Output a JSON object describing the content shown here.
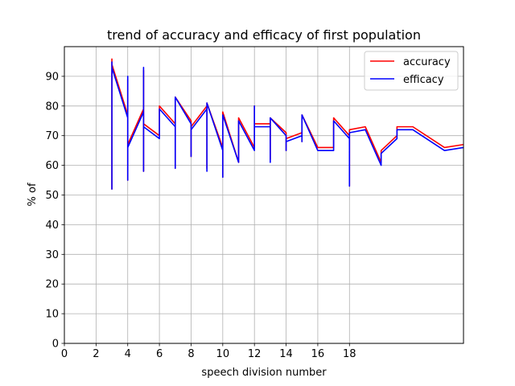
{
  "chart_data": {
    "type": "line",
    "title": "trend of accuracy and efficacy of first population",
    "xlabel": "speech division number",
    "ylabel": "% of",
    "xlim": [
      0,
      25.2
    ],
    "ylim": [
      0,
      100
    ],
    "xticks": [
      0,
      2,
      4,
      6,
      8,
      10,
      12,
      14,
      16,
      18
    ],
    "yticks": [
      0,
      10,
      20,
      30,
      40,
      50,
      60,
      70,
      80,
      90
    ],
    "grid": true,
    "legend_position": "top-right",
    "series": [
      {
        "name": "accuracy",
        "color": "#ff0000",
        "x": [
          3,
          3,
          3,
          4,
          4,
          4,
          4,
          5,
          5,
          5,
          5,
          6,
          6,
          7,
          7,
          7,
          8,
          8,
          8,
          9,
          9,
          9,
          10,
          10,
          10,
          11,
          11,
          12,
          12,
          12,
          13,
          13,
          13,
          14,
          14,
          14,
          15,
          15,
          15,
          16,
          17,
          17,
          18,
          18,
          18,
          19,
          20,
          20,
          21,
          21,
          22,
          24,
          25.2
        ],
        "y": [
          96,
          52,
          94,
          77,
          55,
          89,
          67,
          79,
          58,
          92,
          74,
          70,
          80,
          74,
          59,
          83,
          75,
          63,
          73,
          80,
          59,
          81,
          66,
          56,
          78,
          61,
          76,
          66,
          80,
          74,
          74,
          62,
          76,
          71,
          65,
          69,
          71,
          68,
          77,
          66,
          66,
          76,
          70,
          53,
          72,
          73,
          61,
          65,
          70,
          73,
          73,
          66,
          67
        ]
      },
      {
        "name": "efficacy",
        "color": "#0000ff",
        "x": [
          3,
          3,
          3,
          4,
          4,
          4,
          4,
          5,
          5,
          5,
          5,
          6,
          6,
          7,
          7,
          7,
          8,
          8,
          8,
          9,
          9,
          9,
          10,
          10,
          10,
          11,
          11,
          12,
          12,
          12,
          13,
          13,
          13,
          14,
          14,
          14,
          15,
          15,
          15,
          16,
          17,
          17,
          18,
          18,
          18,
          19,
          20,
          20,
          21,
          21,
          22,
          24,
          25.2
        ],
        "y": [
          95,
          52,
          93,
          76,
          55,
          90,
          66,
          78,
          58,
          93,
          73,
          69,
          79,
          73,
          59,
          83,
          74,
          63,
          72,
          79,
          58,
          81,
          65,
          56,
          77,
          61,
          75,
          65,
          80,
          73,
          73,
          61,
          76,
          70,
          65,
          68,
          70,
          68,
          77,
          65,
          65,
          75,
          69,
          53,
          71,
          72,
          60,
          64,
          69,
          72,
          72,
          65,
          66
        ]
      }
    ]
  }
}
